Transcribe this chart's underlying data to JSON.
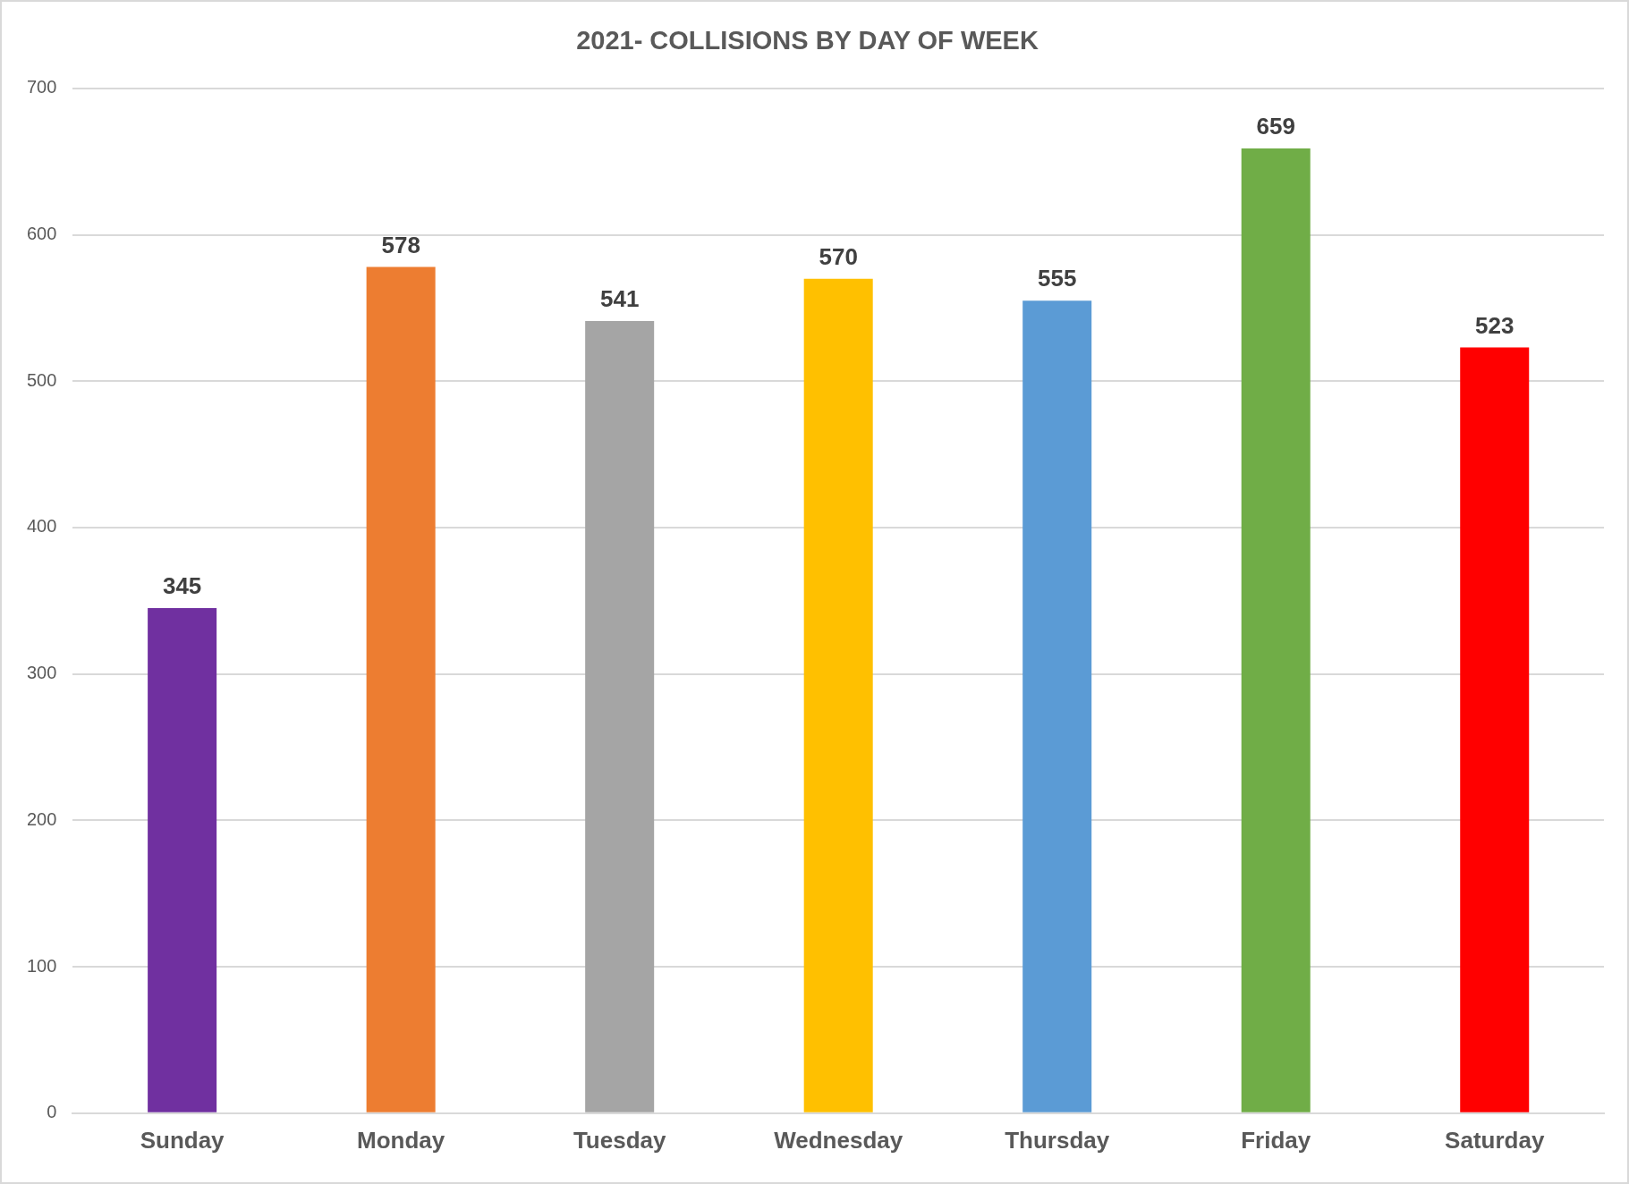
{
  "chart_data": {
    "type": "bar",
    "title": "2021- COLLISIONS BY DAY OF WEEK",
    "categories": [
      "Sunday",
      "Monday",
      "Tuesday",
      "Wednesday",
      "Thursday",
      "Friday",
      "Saturday"
    ],
    "values": [
      345,
      578,
      541,
      570,
      555,
      659,
      523
    ],
    "colors": [
      "#7030a0",
      "#ed7d31",
      "#a5a5a5",
      "#ffc000",
      "#5b9bd5",
      "#70ad47",
      "#ff0000"
    ],
    "ylim": [
      0,
      700
    ],
    "yticks": [
      0,
      100,
      200,
      300,
      400,
      500,
      600,
      700
    ],
    "grid": "y",
    "data_labels": true,
    "legend": false
  }
}
